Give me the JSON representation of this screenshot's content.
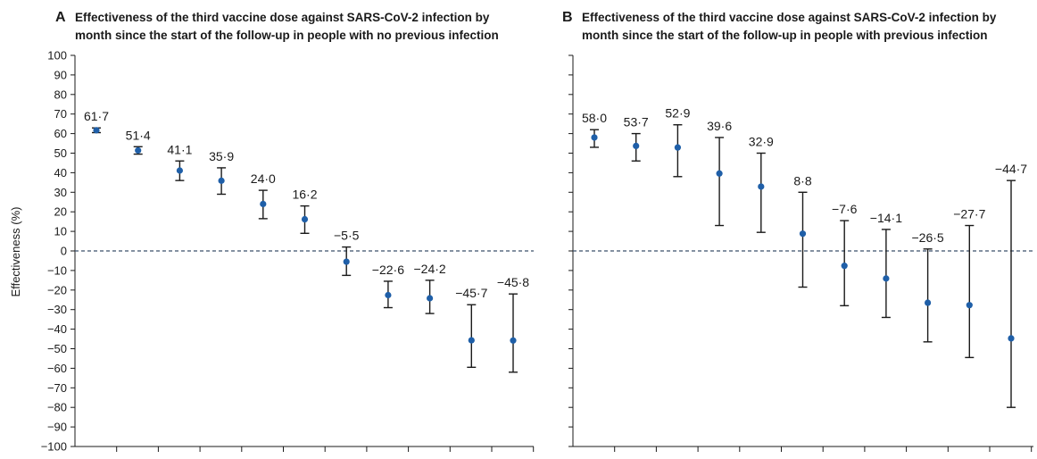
{
  "chart_data": [
    {
      "type": "scatter",
      "panel": "A",
      "title_lines": [
        "Effectiveness of the third vaccine dose against SARS-CoV-2 infection by",
        "month since the start of the follow-up in people with no previous infection"
      ],
      "ylabel": "Effectiveness (%)",
      "ylim": [
        -100,
        100
      ],
      "yticks": [
        100,
        90,
        80,
        70,
        60,
        50,
        40,
        30,
        20,
        10,
        0,
        -10,
        -20,
        -30,
        -40,
        -50,
        -60,
        -70,
        -80,
        -90,
        -100
      ],
      "ytick_labels": [
        "100",
        "90",
        "80",
        "70",
        "60",
        "50",
        "40",
        "30",
        "20",
        "10",
        "0",
        "−10",
        "−20",
        "−30",
        "−40",
        "−50",
        "−60",
        "−70",
        "−80",
        "−90",
        "−100"
      ],
      "reference_line": 0,
      "x": [
        1,
        2,
        3,
        4,
        5,
        6,
        7,
        8,
        9,
        10,
        11
      ],
      "values": [
        61.7,
        51.4,
        41.1,
        35.9,
        24.0,
        16.2,
        -5.5,
        -22.6,
        -24.2,
        -45.7,
        -45.8
      ],
      "labels": [
        "61·7",
        "51·4",
        "41·1",
        "35·9",
        "24·0",
        "16·2",
        "−5·5",
        "−22·6",
        "−24·2",
        "−45·7",
        "−45·8"
      ],
      "ci_lower": [
        60.5,
        49.5,
        36,
        29,
        16.5,
        9,
        -12.5,
        -29,
        -32,
        -59.5,
        -62
      ],
      "ci_upper": [
        62.9,
        53.3,
        46,
        42.5,
        31,
        23,
        2,
        -15.5,
        -15,
        -27.5,
        -22
      ],
      "point_color": "#1f5fa8",
      "errorbar_color": "#1a1a1a"
    },
    {
      "type": "scatter",
      "panel": "B",
      "title_lines": [
        "Effectiveness of the third vaccine dose against SARS-CoV-2 infection by",
        "month since the start of the follow-up in people with previous infection"
      ],
      "ylim": [
        -100,
        100
      ],
      "reference_line": 0,
      "x": [
        1,
        2,
        3,
        4,
        5,
        6,
        7,
        8,
        9,
        10,
        11
      ],
      "values": [
        58.0,
        53.7,
        52.9,
        39.6,
        32.9,
        8.8,
        -7.6,
        -14.1,
        -26.5,
        -27.7,
        -44.7
      ],
      "labels": [
        "58·0",
        "53·7",
        "52·9",
        "39·6",
        "32·9",
        "8·8",
        "−7·6",
        "−14·1",
        "−26·5",
        "−27·7",
        "−44·7"
      ],
      "ci_lower": [
        53,
        46,
        38,
        13,
        9.5,
        -18.5,
        -28,
        -34,
        -46.5,
        -54.5,
        -80
      ],
      "ci_upper": [
        62,
        60,
        64.5,
        58,
        50,
        30,
        15.5,
        11,
        1,
        13,
        36
      ],
      "point_color": "#1f5fa8",
      "errorbar_color": "#1a1a1a"
    }
  ]
}
